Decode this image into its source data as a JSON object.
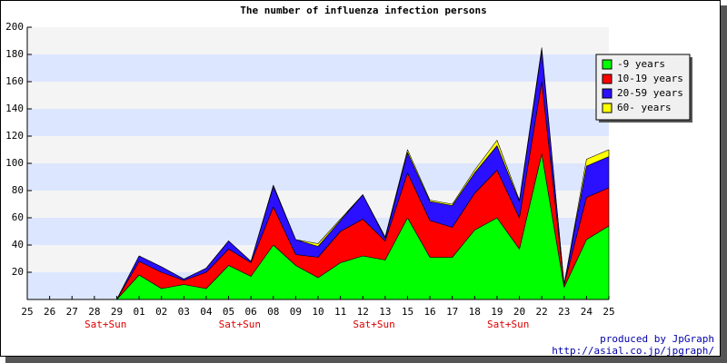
{
  "chart_data": {
    "type": "stacked_area",
    "title": "The number of influenza infection persons",
    "categories": [
      "25",
      "26",
      "27",
      "28",
      "29",
      "01",
      "02",
      "03",
      "04",
      "05",
      "06",
      "08",
      "09",
      "10",
      "11",
      "12",
      "13",
      "15",
      "16",
      "17",
      "18",
      "19",
      "20",
      "22",
      "23",
      "24",
      "25"
    ],
    "series": [
      {
        "name": "-9 years",
        "color": "#00ff00",
        "values": [
          0,
          0,
          0,
          0,
          0,
          18,
          8,
          11,
          8,
          25,
          17,
          40,
          25,
          16,
          27,
          32,
          29,
          60,
          31,
          31,
          51,
          60,
          37,
          107,
          9,
          44,
          54
        ]
      },
      {
        "name": "10-19 years",
        "color": "#ff0000",
        "values": [
          0,
          0,
          0,
          0,
          0,
          10,
          12,
          3,
          12,
          12,
          10,
          28,
          8,
          15,
          23,
          27,
          14,
          33,
          27,
          22,
          27,
          35,
          23,
          53,
          2,
          31,
          28
        ]
      },
      {
        "name": "20-59 years",
        "color": "#2a10ff",
        "values": [
          0,
          0,
          0,
          0,
          0,
          4,
          4,
          1,
          3,
          6,
          1,
          15,
          11,
          8,
          8,
          18,
          2,
          15,
          14,
          16,
          15,
          18,
          12,
          23,
          0,
          23,
          23
        ]
      },
      {
        "name": "60- years",
        "color": "#ffff00",
        "values": [
          0,
          0,
          0,
          0,
          0,
          0,
          0,
          0,
          0,
          0,
          0,
          1,
          0,
          2,
          1,
          0,
          1,
          2,
          1,
          1,
          2,
          4,
          1,
          2,
          0,
          5,
          5
        ]
      }
    ],
    "annotations": [
      "Sat+Sun",
      "Sat+Sun",
      "Sat+Sun",
      "Sat+Sun"
    ],
    "ylim": [
      0,
      200
    ],
    "yticks": [
      20,
      40,
      60,
      80,
      100,
      120,
      140,
      160,
      180,
      200
    ],
    "grid_bands": true,
    "legend": "top-right",
    "footer": [
      "produced by JpGraph",
      "http://asial.co.jp/jpgraph/"
    ]
  }
}
